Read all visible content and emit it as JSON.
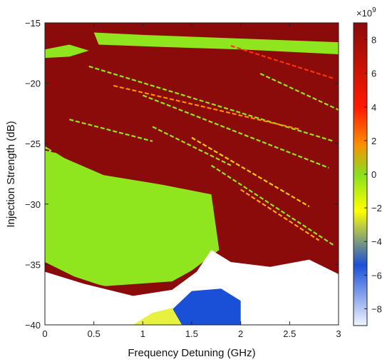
{
  "chart_data": {
    "type": "heatmap",
    "title": "",
    "xlabel": "Frequency Detuning (GHz)",
    "ylabel": "Injection Strength (dB)",
    "xlim": [
      0,
      3
    ],
    "ylim": [
      -40,
      -15
    ],
    "x_ticks": [
      "0",
      "0.5",
      "1",
      "1.5",
      "2",
      "2.5",
      "3"
    ],
    "y_ticks": [
      "-15",
      "-20",
      "-25",
      "-30",
      "-35",
      "-40"
    ],
    "colorbar": {
      "exponent_label": "×10",
      "exponent_power": "9",
      "range": [
        -9,
        9
      ],
      "ticks": [
        "8",
        "6",
        "4",
        "2",
        "0",
        "-2",
        "-4",
        "-6",
        "-8"
      ],
      "colors": [
        "#f0f6ff",
        "#1a4fd8",
        "#ffff00",
        "#88e01e",
        "#ff8c00",
        "#ff1a00",
        "#8b0a0a"
      ]
    },
    "regions": [
      {
        "name": "stable-locking",
        "value": 0,
        "color": "#8fe61e",
        "x": [
          0,
          0,
          0.6,
          1.3,
          1.5,
          1.78,
          1.7,
          1.2,
          0.6,
          0.2,
          0
        ],
        "y": [
          -25.2,
          -35.2,
          -36.8,
          -36.4,
          -35.5,
          -33.8,
          -29.2,
          -28.4,
          -27.6,
          -26.2,
          -25.2
        ]
      },
      {
        "name": "lower-boundary",
        "value": 8.5,
        "color": "#8b0a0a",
        "x": [
          0,
          0.4,
          0.9,
          1.3,
          1.55,
          1.5,
          1.1,
          0.6,
          0.2,
          0
        ],
        "y": [
          -34.8,
          -36.4,
          -37.3,
          -37.0,
          -36.2,
          -36.6,
          -37.6,
          -37.9,
          -37.3,
          -36.3
        ]
      },
      {
        "name": "unlocked-region",
        "value": -9,
        "color": "#ffffff",
        "x": [
          0,
          3,
          3,
          2.7,
          2.3,
          1.9,
          1.7,
          1.55,
          1.3,
          0.9,
          0.4,
          0
        ],
        "y": [
          -40,
          -40,
          -35.8,
          -34.6,
          -35.2,
          -34.8,
          -33.8,
          -35.6,
          -37.1,
          -37.6,
          -36.6,
          -35.6
        ]
      },
      {
        "name": "blue-patch",
        "value": -6,
        "color": "#1a4fd8",
        "x": [
          1.2,
          1.5,
          1.8,
          2.0,
          2.0,
          1.6,
          1.3,
          1.1
        ],
        "y": [
          -39.5,
          -37.2,
          -37.0,
          -38.0,
          -40,
          -40,
          -40,
          -40
        ]
      },
      {
        "name": "yellow-patch",
        "value": -4,
        "color": "#e8f040",
        "x": [
          0.9,
          1.1,
          1.3,
          1.4,
          1.2,
          0.95
        ],
        "y": [
          -40,
          -39.0,
          -38.6,
          -40,
          -40,
          -40
        ]
      },
      {
        "name": "upper-green-band",
        "value": 0,
        "color": "#8fe61e",
        "x": [
          0.5,
          1.0,
          2.0,
          3.0,
          3.0,
          2.0,
          1.2,
          0.55
        ],
        "y": [
          -15.8,
          -16.0,
          -16.3,
          -16.6,
          -17.6,
          -17.2,
          -17.0,
          -16.8
        ]
      },
      {
        "name": "left-upper-green",
        "value": 0,
        "color": "#8fe61e",
        "x": [
          0.0,
          0.25,
          0.45,
          0.25,
          0.0
        ],
        "y": [
          -17.2,
          -16.8,
          -17.3,
          -17.8,
          -17.9
        ]
      }
    ],
    "streaks": [
      {
        "x": [
          0.45,
          2.95
        ],
        "y": [
          -18.6,
          -24.8
        ],
        "color": "#8fe61e"
      },
      {
        "x": [
          0.7,
          2.6
        ],
        "y": [
          -20.2,
          -23.8
        ],
        "color": "#ff8c00"
      },
      {
        "x": [
          1.0,
          2.9
        ],
        "y": [
          -21.0,
          -27.0
        ],
        "color": "#8fe61e"
      },
      {
        "x": [
          1.5,
          2.7
        ],
        "y": [
          -24.5,
          -30.2
        ],
        "color": "#ffcc00"
      },
      {
        "x": [
          1.7,
          2.95
        ],
        "y": [
          -26.8,
          -33.4
        ],
        "color": "#8fe61e"
      },
      {
        "x": [
          2.0,
          2.8
        ],
        "y": [
          -28.8,
          -33.0
        ],
        "color": "#ffa020"
      },
      {
        "x": [
          0.25,
          1.1
        ],
        "y": [
          -23.0,
          -24.8
        ],
        "color": "#8fe61e"
      },
      {
        "x": [
          1.1,
          1.9
        ],
        "y": [
          -23.6,
          -26.8
        ],
        "color": "#8fe61e"
      },
      {
        "x": [
          2.2,
          3.0
        ],
        "y": [
          -19.2,
          -22.2
        ],
        "color": "#8fe61e"
      },
      {
        "x": [
          1.9,
          2.95
        ],
        "y": [
          -16.9,
          -19.6
        ],
        "color": "#ff3300"
      },
      {
        "x": [
          0.0,
          1.6
        ],
        "y": [
          -25.5,
          -28.4
        ],
        "color": "#8b0a0a"
      }
    ]
  }
}
